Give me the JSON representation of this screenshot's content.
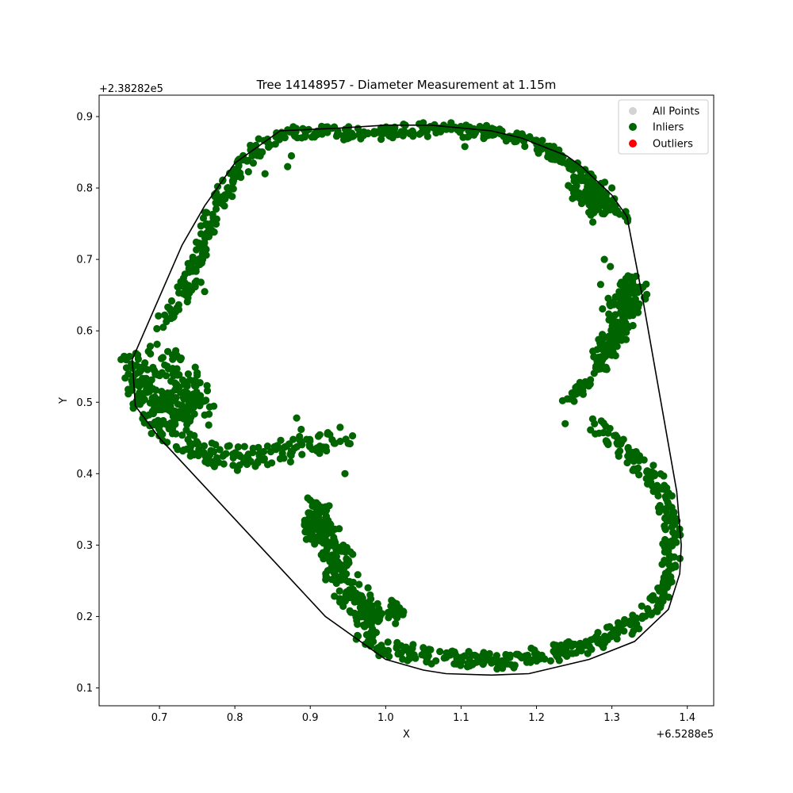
{
  "chart_data": {
    "type": "scatter",
    "title": "Tree 14148957 - Diameter Measurement at 1.15m",
    "xlabel": "X",
    "ylabel": "Y",
    "x_offset_text": "+6.5288e5",
    "y_offset_text": "+2.38282e5",
    "xlim": [
      0.62,
      1.435
    ],
    "ylim": [
      0.075,
      0.93
    ],
    "x_ticks": [
      0.7,
      0.8,
      0.9,
      1.0,
      1.1,
      1.2,
      1.3,
      1.4
    ],
    "x_tick_labels": [
      "0.7",
      "0.8",
      "0.9",
      "1.0",
      "1.1",
      "1.2",
      "1.3",
      "1.4"
    ],
    "y_ticks": [
      0.1,
      0.2,
      0.3,
      0.4,
      0.5,
      0.6,
      0.7,
      0.8,
      0.9
    ],
    "y_tick_labels": [
      "0.1",
      "0.2",
      "0.3",
      "0.4",
      "0.5",
      "0.6",
      "0.7",
      "0.8",
      "0.9"
    ],
    "grid": false,
    "legend_position": "top-right",
    "legend": [
      {
        "label": "All Points",
        "color": "#d3d3d3"
      },
      {
        "label": "Inliers",
        "color": "#006400"
      },
      {
        "label": "Outliers",
        "color": "#ff0000"
      }
    ],
    "hull_color": "#000000",
    "hull": [
      [
        0.664,
        0.56
      ],
      [
        0.668,
        0.495
      ],
      [
        0.7,
        0.45
      ],
      [
        0.92,
        0.2
      ],
      [
        1.0,
        0.14
      ],
      [
        1.05,
        0.125
      ],
      [
        1.08,
        0.12
      ],
      [
        1.14,
        0.118
      ],
      [
        1.19,
        0.12
      ],
      [
        1.27,
        0.14
      ],
      [
        1.33,
        0.165
      ],
      [
        1.375,
        0.21
      ],
      [
        1.39,
        0.26
      ],
      [
        1.392,
        0.3
      ],
      [
        1.386,
        0.375
      ],
      [
        1.34,
        0.65
      ],
      [
        1.32,
        0.76
      ],
      [
        1.3,
        0.79
      ],
      [
        1.26,
        0.83
      ],
      [
        1.24,
        0.845
      ],
      [
        1.18,
        0.87
      ],
      [
        1.14,
        0.88
      ],
      [
        1.06,
        0.888
      ],
      [
        1.0,
        0.888
      ],
      [
        0.94,
        0.884
      ],
      [
        0.86,
        0.88
      ],
      [
        0.8,
        0.835
      ],
      [
        0.76,
        0.775
      ],
      [
        0.73,
        0.72
      ],
      [
        0.664,
        0.56
      ]
    ],
    "inlier_clusters": [
      {
        "points": [
          [
            0.663,
            0.56
          ],
          [
            0.67,
            0.53
          ],
          [
            0.68,
            0.5
          ],
          [
            0.7,
            0.47
          ],
          [
            0.72,
            0.45
          ],
          [
            0.74,
            0.44
          ],
          [
            0.76,
            0.43
          ],
          [
            0.78,
            0.425
          ],
          [
            0.8,
            0.42
          ],
          [
            0.83,
            0.425
          ],
          [
            0.86,
            0.43
          ],
          [
            0.89,
            0.44
          ],
          [
            0.92,
            0.447
          ],
          [
            0.94,
            0.452
          ]
        ],
        "spread": 0.018
      },
      {
        "points": [
          [
            0.67,
            0.55
          ],
          [
            0.7,
            0.56
          ],
          [
            0.72,
            0.55
          ],
          [
            0.74,
            0.53
          ],
          [
            0.75,
            0.51
          ],
          [
            0.76,
            0.49
          ],
          [
            0.72,
            0.51
          ],
          [
            0.69,
            0.52
          ],
          [
            0.73,
            0.48
          ],
          [
            0.7,
            0.5
          ]
        ],
        "spread": 0.025
      },
      {
        "points": [
          [
            0.705,
            0.61
          ],
          [
            0.72,
            0.63
          ],
          [
            0.735,
            0.66
          ],
          [
            0.75,
            0.7
          ],
          [
            0.76,
            0.73
          ],
          [
            0.77,
            0.77
          ],
          [
            0.79,
            0.8
          ],
          [
            0.81,
            0.83
          ],
          [
            0.83,
            0.855
          ],
          [
            0.86,
            0.875
          ]
        ],
        "spread": 0.012
      },
      {
        "points": [
          [
            0.87,
            0.88
          ],
          [
            0.92,
            0.878
          ],
          [
            0.97,
            0.875
          ],
          [
            1.0,
            0.878
          ],
          [
            1.04,
            0.882
          ],
          [
            1.08,
            0.882
          ],
          [
            1.12,
            0.88
          ],
          [
            1.16,
            0.875
          ],
          [
            1.19,
            0.865
          ],
          [
            1.22,
            0.85
          ],
          [
            1.25,
            0.83
          ],
          [
            1.27,
            0.81
          ],
          [
            1.28,
            0.79
          ],
          [
            1.3,
            0.775
          ],
          [
            1.32,
            0.76
          ]
        ],
        "spread": 0.01
      },
      {
        "points": [
          [
            1.26,
            0.8
          ],
          [
            1.27,
            0.78
          ],
          [
            1.28,
            0.77
          ],
          [
            1.25,
            0.81
          ],
          [
            1.29,
            0.79
          ]
        ],
        "spread": 0.02
      },
      {
        "points": [
          [
            1.34,
            0.66
          ],
          [
            1.33,
            0.64
          ],
          [
            1.32,
            0.62
          ],
          [
            1.31,
            0.6
          ],
          [
            1.3,
            0.58
          ],
          [
            1.29,
            0.56
          ],
          [
            1.28,
            0.55
          ],
          [
            1.33,
            0.67
          ],
          [
            1.3,
            0.63
          ]
        ],
        "spread": 0.015
      },
      {
        "points": [
          [
            1.27,
            0.53
          ],
          [
            1.26,
            0.52
          ],
          [
            1.25,
            0.51
          ],
          [
            1.24,
            0.5
          ]
        ],
        "spread": 0.008
      },
      {
        "points": [
          [
            1.28,
            0.47
          ],
          [
            1.3,
            0.45
          ],
          [
            1.32,
            0.43
          ],
          [
            1.34,
            0.41
          ],
          [
            1.36,
            0.39
          ],
          [
            1.37,
            0.37
          ],
          [
            1.375,
            0.34
          ],
          [
            1.38,
            0.31
          ],
          [
            1.378,
            0.28
          ],
          [
            1.372,
            0.25
          ],
          [
            1.36,
            0.22
          ],
          [
            1.34,
            0.2
          ],
          [
            1.32,
            0.185
          ],
          [
            1.29,
            0.17
          ],
          [
            1.25,
            0.155
          ],
          [
            1.2,
            0.145
          ],
          [
            1.15,
            0.138
          ],
          [
            1.1,
            0.14
          ],
          [
            1.05,
            0.148
          ],
          [
            1.0,
            0.155
          ],
          [
            0.97,
            0.165
          ]
        ],
        "spread": 0.013
      },
      {
        "points": [
          [
            0.9,
            0.36
          ],
          [
            0.91,
            0.33
          ],
          [
            0.92,
            0.3
          ],
          [
            0.925,
            0.28
          ],
          [
            0.93,
            0.26
          ],
          [
            0.94,
            0.24
          ],
          [
            0.955,
            0.22
          ],
          [
            0.97,
            0.2
          ],
          [
            0.99,
            0.185
          ],
          [
            0.91,
            0.35
          ],
          [
            0.9,
            0.31
          ],
          [
            0.92,
            0.32
          ]
        ],
        "spread": 0.015
      },
      {
        "points": [
          [
            1.01,
            0.22
          ],
          [
            1.02,
            0.205
          ],
          [
            0.99,
            0.2
          ]
        ],
        "spread": 0.006
      }
    ],
    "inlier_singles": [
      [
        0.946,
        0.4
      ],
      [
        0.882,
        0.478
      ],
      [
        0.888,
        0.462
      ],
      [
        0.87,
        0.83
      ],
      [
        0.84,
        0.82
      ],
      [
        0.875,
        0.845
      ],
      [
        0.823,
        0.845
      ],
      [
        0.76,
        0.655
      ],
      [
        0.755,
        0.668
      ],
      [
        1.105,
        0.858
      ],
      [
        1.275,
        0.815
      ],
      [
        1.298,
        0.69
      ],
      [
        1.285,
        0.665
      ],
      [
        1.29,
        0.7
      ],
      [
        1.238,
        0.47
      ],
      [
        1.013,
        0.19
      ],
      [
        1.15,
        0.13
      ],
      [
        0.925,
        0.355
      ],
      [
        0.79,
        0.8
      ],
      [
        0.705,
        0.605
      ]
    ]
  }
}
